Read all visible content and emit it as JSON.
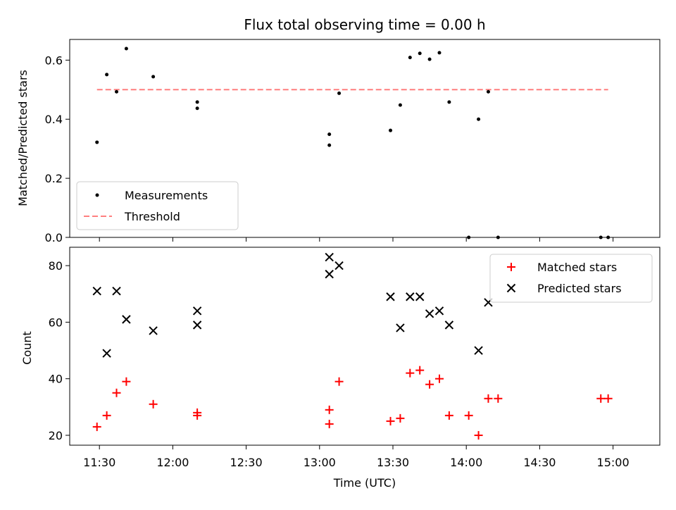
{
  "chart_data": [
    {
      "type": "scatter",
      "title": "Flux total observing time = 0.00 h",
      "ylabel": "Matched/Predicted stars",
      "xlabel": "",
      "ylim": [
        0.0,
        0.67
      ],
      "yticks": [
        0.0,
        0.2,
        0.4,
        0.6
      ],
      "ytick_labels": [
        "0.0",
        "0.2",
        "0.4",
        "0.6"
      ],
      "grid": false,
      "legend_position": "lower-left",
      "series": [
        {
          "name": "Measurements",
          "kind": "dot",
          "color": "#000000",
          "points": [
            {
              "x": "11:29",
              "y": 0.322
            },
            {
              "x": "11:33",
              "y": 0.551
            },
            {
              "x": "11:37",
              "y": 0.493
            },
            {
              "x": "11:41",
              "y": 0.639
            },
            {
              "x": "11:52",
              "y": 0.544
            },
            {
              "x": "12:10",
              "y": 0.437
            },
            {
              "x": "12:10",
              "y": 0.458
            },
            {
              "x": "13:04",
              "y": 0.312
            },
            {
              "x": "13:04",
              "y": 0.349
            },
            {
              "x": "13:08",
              "y": 0.488
            },
            {
              "x": "13:29",
              "y": 0.362
            },
            {
              "x": "13:33",
              "y": 0.448
            },
            {
              "x": "13:37",
              "y": 0.609
            },
            {
              "x": "13:41",
              "y": 0.623
            },
            {
              "x": "13:45",
              "y": 0.603
            },
            {
              "x": "13:49",
              "y": 0.625
            },
            {
              "x": "13:53",
              "y": 0.458
            },
            {
              "x": "14:01",
              "y": 0.0
            },
            {
              "x": "14:05",
              "y": 0.4
            },
            {
              "x": "14:09",
              "y": 0.493
            },
            {
              "x": "14:13",
              "y": 0.0
            },
            {
              "x": "14:55",
              "y": 0.0
            },
            {
              "x": "14:58",
              "y": 0.0
            }
          ]
        },
        {
          "name": "Threshold",
          "kind": "dashed-line",
          "color": "#ff7f7f",
          "points": [
            {
              "x": "11:29",
              "y": 0.5
            },
            {
              "x": "14:58",
              "y": 0.5
            }
          ]
        }
      ]
    },
    {
      "type": "scatter",
      "title": "",
      "ylabel": "Count",
      "xlabel": "Time (UTC)",
      "ylim": [
        16.5,
        86.5
      ],
      "yticks": [
        20,
        40,
        60,
        80
      ],
      "ytick_labels": [
        "20",
        "40",
        "60",
        "80"
      ],
      "xticks": [
        "11:30",
        "12:00",
        "12:30",
        "13:00",
        "13:30",
        "14:00",
        "14:30",
        "15:00"
      ],
      "grid": false,
      "legend_position": "top-right",
      "series": [
        {
          "name": "Matched stars",
          "kind": "plus",
          "color": "#ff0000",
          "points": [
            {
              "x": "11:29",
              "y": 23
            },
            {
              "x": "11:33",
              "y": 27
            },
            {
              "x": "11:37",
              "y": 35
            },
            {
              "x": "11:41",
              "y": 39
            },
            {
              "x": "11:52",
              "y": 31
            },
            {
              "x": "12:10",
              "y": 28
            },
            {
              "x": "12:10",
              "y": 27
            },
            {
              "x": "13:04",
              "y": 24
            },
            {
              "x": "13:04",
              "y": 29
            },
            {
              "x": "13:08",
              "y": 39
            },
            {
              "x": "13:29",
              "y": 25
            },
            {
              "x": "13:33",
              "y": 26
            },
            {
              "x": "13:37",
              "y": 42
            },
            {
              "x": "13:41",
              "y": 43
            },
            {
              "x": "13:45",
              "y": 38
            },
            {
              "x": "13:49",
              "y": 40
            },
            {
              "x": "13:53",
              "y": 27
            },
            {
              "x": "14:01",
              "y": 27
            },
            {
              "x": "14:05",
              "y": 20
            },
            {
              "x": "14:09",
              "y": 33
            },
            {
              "x": "14:13",
              "y": 33
            },
            {
              "x": "14:55",
              "y": 33
            },
            {
              "x": "14:58",
              "y": 33
            }
          ]
        },
        {
          "name": "Predicted stars",
          "kind": "x",
          "color": "#000000",
          "points": [
            {
              "x": "11:29",
              "y": 71
            },
            {
              "x": "11:33",
              "y": 49
            },
            {
              "x": "11:37",
              "y": 71
            },
            {
              "x": "11:41",
              "y": 61
            },
            {
              "x": "11:52",
              "y": 57
            },
            {
              "x": "12:10",
              "y": 64
            },
            {
              "x": "12:10",
              "y": 59
            },
            {
              "x": "13:04",
              "y": 83
            },
            {
              "x": "13:04",
              "y": 77
            },
            {
              "x": "13:08",
              "y": 80
            },
            {
              "x": "13:29",
              "y": 69
            },
            {
              "x": "13:33",
              "y": 58
            },
            {
              "x": "13:37",
              "y": 69
            },
            {
              "x": "13:41",
              "y": 69
            },
            {
              "x": "13:45",
              "y": 63
            },
            {
              "x": "13:49",
              "y": 64
            },
            {
              "x": "13:53",
              "y": 59
            },
            {
              "x": "14:05",
              "y": 50
            },
            {
              "x": "14:09",
              "y": 67
            }
          ]
        }
      ]
    }
  ]
}
